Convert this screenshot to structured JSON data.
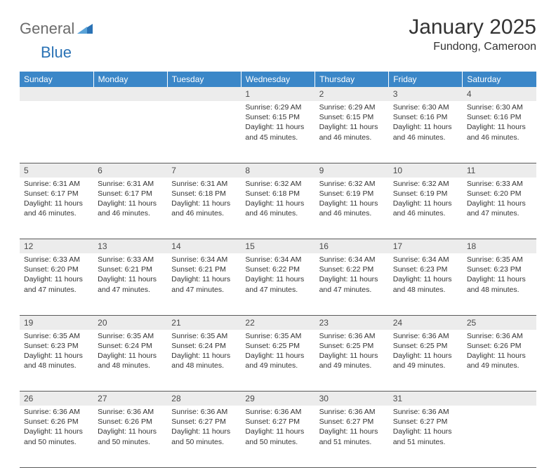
{
  "brand": {
    "part1": "General",
    "part2": "Blue"
  },
  "title": "January 2025",
  "location": "Fundong, Cameroon",
  "colors": {
    "header_bg": "#3b87c8",
    "header_fg": "#ffffff",
    "daynum_bg": "#ececec",
    "daynum_fg": "#4a4a4a",
    "body_text": "#333333",
    "rule": "#5a5a5a",
    "logo_gray": "#6b6b6b",
    "logo_blue": "#2a72b5"
  },
  "typography": {
    "title_size_pt": 22,
    "location_size_pt": 12,
    "weekday_size_pt": 9,
    "daynum_size_pt": 9,
    "cell_size_pt": 8
  },
  "weekdays": [
    "Sunday",
    "Monday",
    "Tuesday",
    "Wednesday",
    "Thursday",
    "Friday",
    "Saturday"
  ],
  "weeks": [
    [
      null,
      null,
      null,
      {
        "n": "1",
        "sr": "6:29 AM",
        "ss": "6:15 PM",
        "dl": "11 hours and 45 minutes."
      },
      {
        "n": "2",
        "sr": "6:29 AM",
        "ss": "6:15 PM",
        "dl": "11 hours and 46 minutes."
      },
      {
        "n": "3",
        "sr": "6:30 AM",
        "ss": "6:16 PM",
        "dl": "11 hours and 46 minutes."
      },
      {
        "n": "4",
        "sr": "6:30 AM",
        "ss": "6:16 PM",
        "dl": "11 hours and 46 minutes."
      }
    ],
    [
      {
        "n": "5",
        "sr": "6:31 AM",
        "ss": "6:17 PM",
        "dl": "11 hours and 46 minutes."
      },
      {
        "n": "6",
        "sr": "6:31 AM",
        "ss": "6:17 PM",
        "dl": "11 hours and 46 minutes."
      },
      {
        "n": "7",
        "sr": "6:31 AM",
        "ss": "6:18 PM",
        "dl": "11 hours and 46 minutes."
      },
      {
        "n": "8",
        "sr": "6:32 AM",
        "ss": "6:18 PM",
        "dl": "11 hours and 46 minutes."
      },
      {
        "n": "9",
        "sr": "6:32 AM",
        "ss": "6:19 PM",
        "dl": "11 hours and 46 minutes."
      },
      {
        "n": "10",
        "sr": "6:32 AM",
        "ss": "6:19 PM",
        "dl": "11 hours and 46 minutes."
      },
      {
        "n": "11",
        "sr": "6:33 AM",
        "ss": "6:20 PM",
        "dl": "11 hours and 47 minutes."
      }
    ],
    [
      {
        "n": "12",
        "sr": "6:33 AM",
        "ss": "6:20 PM",
        "dl": "11 hours and 47 minutes."
      },
      {
        "n": "13",
        "sr": "6:33 AM",
        "ss": "6:21 PM",
        "dl": "11 hours and 47 minutes."
      },
      {
        "n": "14",
        "sr": "6:34 AM",
        "ss": "6:21 PM",
        "dl": "11 hours and 47 minutes."
      },
      {
        "n": "15",
        "sr": "6:34 AM",
        "ss": "6:22 PM",
        "dl": "11 hours and 47 minutes."
      },
      {
        "n": "16",
        "sr": "6:34 AM",
        "ss": "6:22 PM",
        "dl": "11 hours and 47 minutes."
      },
      {
        "n": "17",
        "sr": "6:34 AM",
        "ss": "6:23 PM",
        "dl": "11 hours and 48 minutes."
      },
      {
        "n": "18",
        "sr": "6:35 AM",
        "ss": "6:23 PM",
        "dl": "11 hours and 48 minutes."
      }
    ],
    [
      {
        "n": "19",
        "sr": "6:35 AM",
        "ss": "6:23 PM",
        "dl": "11 hours and 48 minutes."
      },
      {
        "n": "20",
        "sr": "6:35 AM",
        "ss": "6:24 PM",
        "dl": "11 hours and 48 minutes."
      },
      {
        "n": "21",
        "sr": "6:35 AM",
        "ss": "6:24 PM",
        "dl": "11 hours and 48 minutes."
      },
      {
        "n": "22",
        "sr": "6:35 AM",
        "ss": "6:25 PM",
        "dl": "11 hours and 49 minutes."
      },
      {
        "n": "23",
        "sr": "6:36 AM",
        "ss": "6:25 PM",
        "dl": "11 hours and 49 minutes."
      },
      {
        "n": "24",
        "sr": "6:36 AM",
        "ss": "6:25 PM",
        "dl": "11 hours and 49 minutes."
      },
      {
        "n": "25",
        "sr": "6:36 AM",
        "ss": "6:26 PM",
        "dl": "11 hours and 49 minutes."
      }
    ],
    [
      {
        "n": "26",
        "sr": "6:36 AM",
        "ss": "6:26 PM",
        "dl": "11 hours and 50 minutes."
      },
      {
        "n": "27",
        "sr": "6:36 AM",
        "ss": "6:26 PM",
        "dl": "11 hours and 50 minutes."
      },
      {
        "n": "28",
        "sr": "6:36 AM",
        "ss": "6:27 PM",
        "dl": "11 hours and 50 minutes."
      },
      {
        "n": "29",
        "sr": "6:36 AM",
        "ss": "6:27 PM",
        "dl": "11 hours and 50 minutes."
      },
      {
        "n": "30",
        "sr": "6:36 AM",
        "ss": "6:27 PM",
        "dl": "11 hours and 51 minutes."
      },
      {
        "n": "31",
        "sr": "6:36 AM",
        "ss": "6:27 PM",
        "dl": "11 hours and 51 minutes."
      },
      null
    ]
  ],
  "labels": {
    "sunrise": "Sunrise:",
    "sunset": "Sunset:",
    "daylight": "Daylight:"
  }
}
